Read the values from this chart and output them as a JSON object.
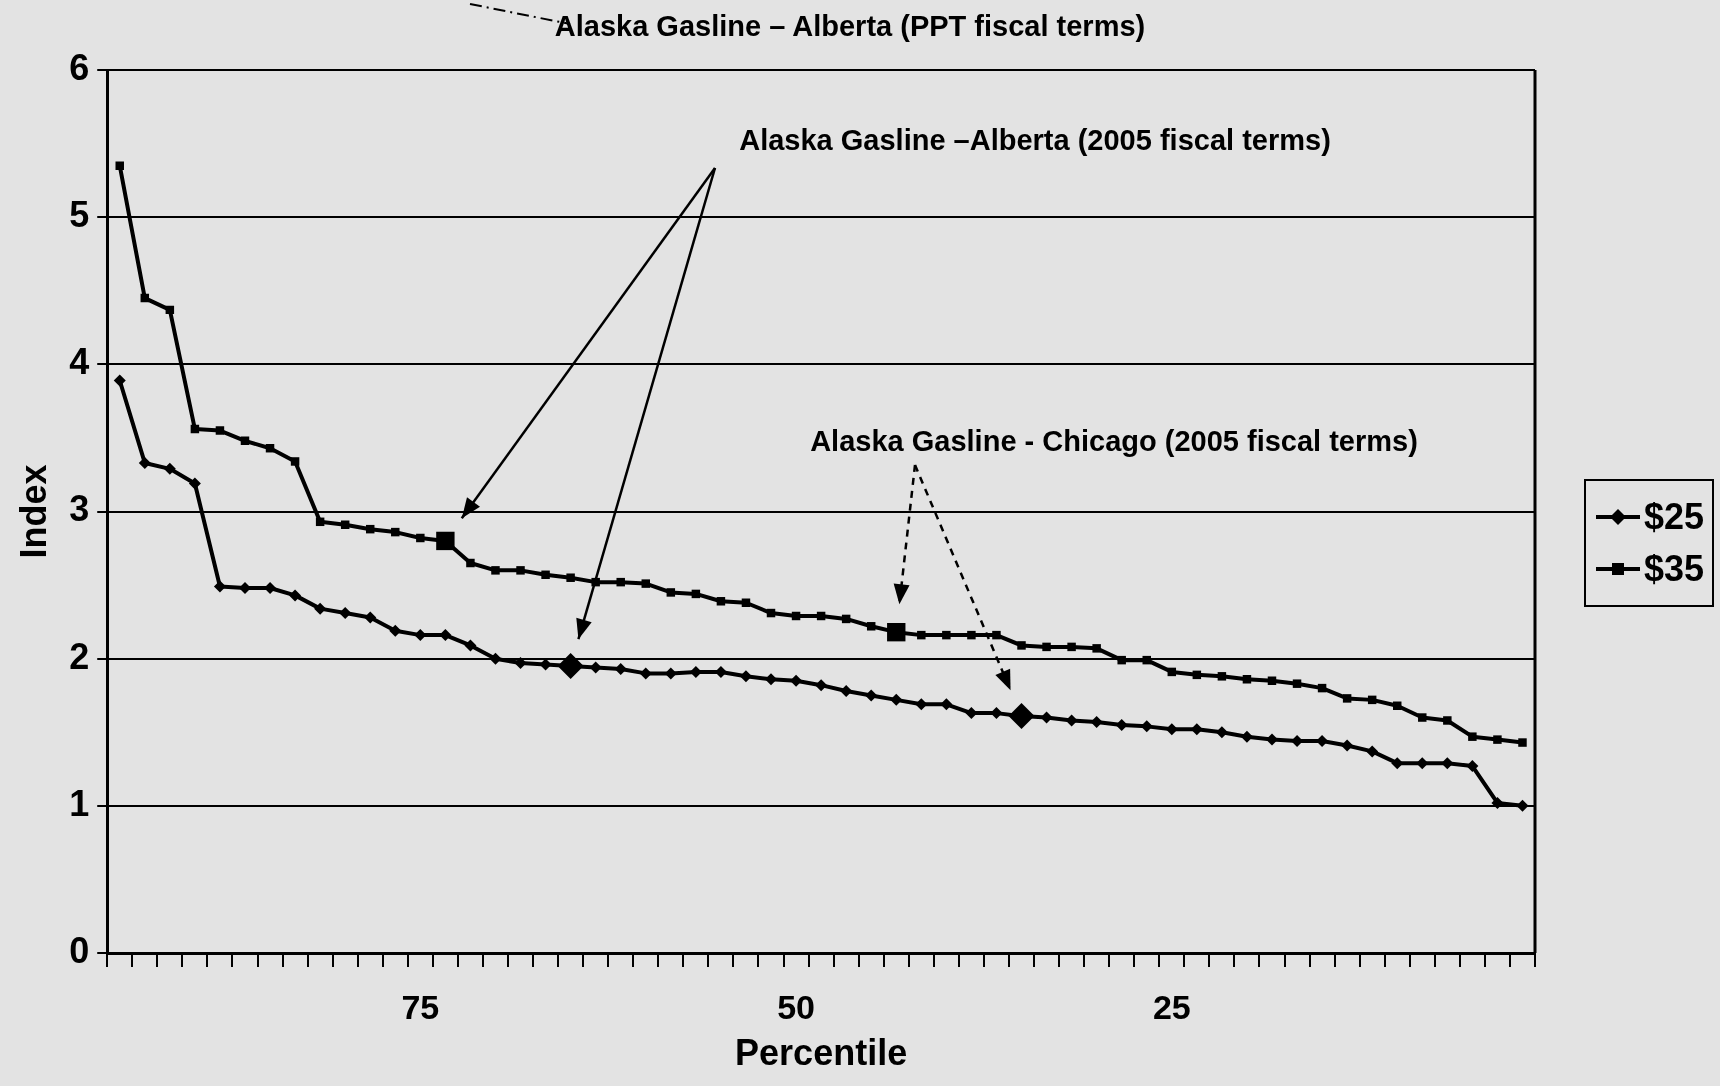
{
  "chart_data": {
    "type": "line",
    "xlabel": "Percentile",
    "ylabel": "Index",
    "categories": [
      null,
      null,
      null,
      null,
      null,
      null,
      null,
      null,
      null,
      null,
      null,
      null,
      "75",
      null,
      null,
      null,
      null,
      null,
      null,
      null,
      null,
      null,
      null,
      null,
      null,
      null,
      null,
      "50",
      null,
      null,
      null,
      null,
      null,
      null,
      null,
      null,
      null,
      null,
      null,
      null,
      null,
      null,
      "25",
      null,
      null,
      null,
      null,
      null,
      null,
      null,
      null,
      null,
      null,
      null,
      null,
      null,
      null
    ],
    "ylim": [
      0,
      6
    ],
    "yticks": [
      0,
      1,
      2,
      3,
      4,
      5,
      6
    ],
    "grid": "y",
    "legend": "right",
    "line_style": "solid",
    "annotations": [
      "Alaska Gasline – Alberta (PPT fiscal terms)",
      "Alaska Gasline –Alberta (2005 fiscal terms)",
      "Alaska Gasline - Chicago (2005 fiscal terms)"
    ],
    "series": [
      {
        "name": "$25",
        "color": "#000000",
        "marker": "diamond",
        "values": [
          3.89,
          3.33,
          3.29,
          3.19,
          2.49,
          2.48,
          2.48,
          2.43,
          2.34,
          2.31,
          2.28,
          2.19,
          2.16,
          2.16,
          2.09,
          2.0,
          1.97,
          1.96,
          1.95,
          1.94,
          1.93,
          1.9,
          1.9,
          1.91,
          1.91,
          1.88,
          1.86,
          1.85,
          1.82,
          1.78,
          1.75,
          1.72,
          1.69,
          1.69,
          1.63,
          1.63,
          1.61,
          1.6,
          1.58,
          1.57,
          1.55,
          1.54,
          1.52,
          1.52,
          1.5,
          1.47,
          1.45,
          1.44,
          1.44,
          1.41,
          1.37,
          1.29,
          1.29,
          1.29,
          1.27,
          1.02,
          1.0
        ]
      },
      {
        "name": "$35",
        "color": "#000000",
        "marker": "square",
        "values": [
          5.35,
          4.45,
          4.37,
          3.56,
          3.55,
          3.48,
          3.43,
          3.34,
          2.93,
          2.91,
          2.88,
          2.86,
          2.82,
          2.8,
          2.65,
          2.6,
          2.6,
          2.57,
          2.55,
          2.52,
          2.52,
          2.51,
          2.45,
          2.44,
          2.39,
          2.38,
          2.31,
          2.29,
          2.29,
          2.27,
          2.22,
          2.18,
          2.16,
          2.16,
          2.16,
          2.16,
          2.09,
          2.08,
          2.08,
          2.07,
          1.99,
          1.99,
          1.91,
          1.89,
          1.88,
          1.86,
          1.85,
          1.83,
          1.8,
          1.73,
          1.72,
          1.68,
          1.6,
          1.58,
          1.47,
          1.45,
          1.43
        ]
      }
    ]
  }
}
